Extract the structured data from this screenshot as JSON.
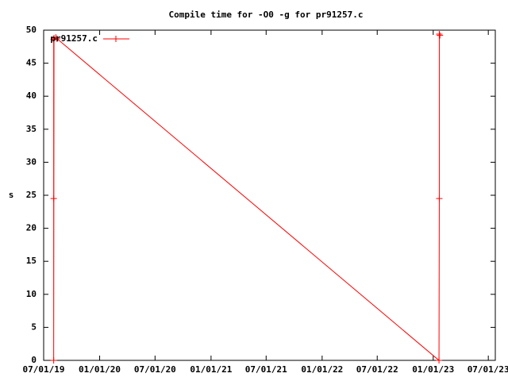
{
  "chart_data": {
    "type": "line",
    "title": "Compile time for -O0 -g for pr91257.c",
    "y_label": "s",
    "x": [
      "2019-08-03",
      "2019-08-03",
      "2019-08-03",
      "2019-08-04",
      "2019-08-10",
      "2019-08-14",
      "2023-01-20",
      "2023-01-21",
      "2023-01-21",
      "2023-01-23"
    ],
    "series": [
      {
        "name": "pr91257.c",
        "color": "#ff0000",
        "values": [
          24.5,
          48.6,
          0,
          48.8,
          48.9,
          48.7,
          0,
          24.5,
          49.4,
          49.2
        ]
      }
    ],
    "xlim": [
      "2019-07-01",
      "2023-07-24"
    ],
    "xticks": [
      {
        "value": "2019-07-01",
        "label": "07/01/19"
      },
      {
        "value": "2020-01-01",
        "label": "01/01/20"
      },
      {
        "value": "2020-07-01",
        "label": "07/01/20"
      },
      {
        "value": "2021-01-01",
        "label": "01/01/21"
      },
      {
        "value": "2021-07-01",
        "label": "07/01/21"
      },
      {
        "value": "2022-01-01",
        "label": "01/01/22"
      },
      {
        "value": "2022-07-01",
        "label": "07/01/22"
      },
      {
        "value": "2023-01-01",
        "label": "01/01/23"
      },
      {
        "value": "2023-07-01",
        "label": "07/01/23"
      }
    ],
    "ylim": [
      0,
      50
    ],
    "yticks": [
      0,
      5,
      10,
      15,
      20,
      25,
      30,
      35,
      40,
      45,
      50
    ],
    "legend": "top-left",
    "markers": true
  }
}
